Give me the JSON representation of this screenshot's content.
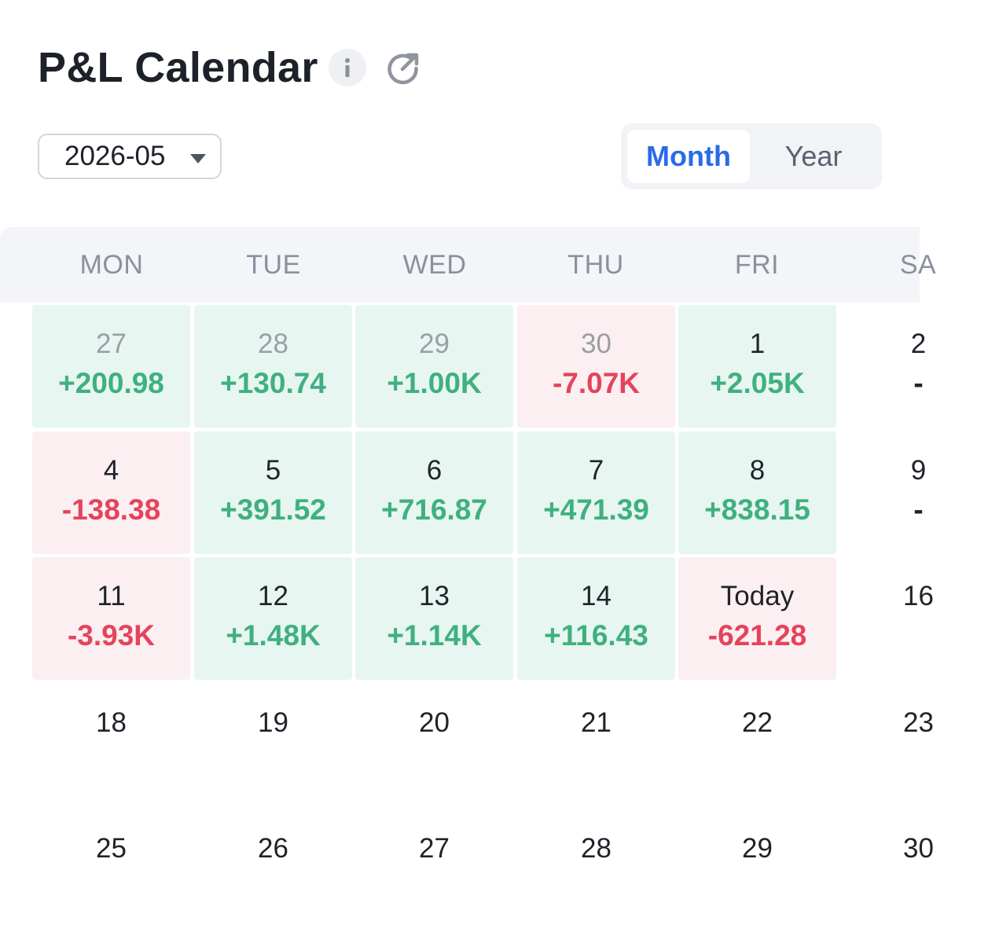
{
  "header": {
    "title": "P&L Calendar",
    "info_icon": "info-icon",
    "share_icon": "external-link-icon"
  },
  "controls": {
    "month_value": "2026-05",
    "view_toggle": {
      "options": [
        "Month",
        "Year"
      ],
      "selected": "Month"
    }
  },
  "weekdays": [
    "MON",
    "TUE",
    "WED",
    "THU",
    "FRI",
    "SA"
  ],
  "calendar": {
    "weeks": [
      [
        {
          "day": "27",
          "value": "+200.98",
          "status": "pos",
          "dim": true
        },
        {
          "day": "28",
          "value": "+130.74",
          "status": "pos",
          "dim": true
        },
        {
          "day": "29",
          "value": "+1.00K",
          "status": "pos",
          "dim": true
        },
        {
          "day": "30",
          "value": "-7.07K",
          "status": "neg",
          "dim": true
        },
        {
          "day": "1",
          "value": "+2.05K",
          "status": "pos",
          "dim": false
        },
        {
          "day": "2",
          "value": "-",
          "status": "none",
          "dim": false
        }
      ],
      [
        {
          "day": "4",
          "value": "-138.38",
          "status": "neg",
          "dim": false
        },
        {
          "day": "5",
          "value": "+391.52",
          "status": "pos",
          "dim": false
        },
        {
          "day": "6",
          "value": "+716.87",
          "status": "pos",
          "dim": false
        },
        {
          "day": "7",
          "value": "+471.39",
          "status": "pos",
          "dim": false
        },
        {
          "day": "8",
          "value": "+838.15",
          "status": "pos",
          "dim": false
        },
        {
          "day": "9",
          "value": "-",
          "status": "none",
          "dim": false
        }
      ],
      [
        {
          "day": "11",
          "value": "-3.93K",
          "status": "neg",
          "dim": false
        },
        {
          "day": "12",
          "value": "+1.48K",
          "status": "pos",
          "dim": false
        },
        {
          "day": "13",
          "value": "+1.14K",
          "status": "pos",
          "dim": false
        },
        {
          "day": "14",
          "value": "+116.43",
          "status": "pos",
          "dim": false
        },
        {
          "day": "Today",
          "value": "-621.28",
          "status": "neg",
          "dim": false
        },
        {
          "day": "16",
          "value": "",
          "status": "none",
          "dim": false
        }
      ],
      [
        {
          "day": "18",
          "value": "",
          "status": "none",
          "dim": false
        },
        {
          "day": "19",
          "value": "",
          "status": "none",
          "dim": false
        },
        {
          "day": "20",
          "value": "",
          "status": "none",
          "dim": false
        },
        {
          "day": "21",
          "value": "",
          "status": "none",
          "dim": false
        },
        {
          "day": "22",
          "value": "",
          "status": "none",
          "dim": false
        },
        {
          "day": "23",
          "value": "",
          "status": "none",
          "dim": false
        }
      ],
      [
        {
          "day": "25",
          "value": "",
          "status": "none",
          "dim": false
        },
        {
          "day": "26",
          "value": "",
          "status": "none",
          "dim": false
        },
        {
          "day": "27",
          "value": "",
          "status": "none",
          "dim": false
        },
        {
          "day": "28",
          "value": "",
          "status": "none",
          "dim": false
        },
        {
          "day": "29",
          "value": "",
          "status": "none",
          "dim": false
        },
        {
          "day": "30",
          "value": "",
          "status": "none",
          "dim": false
        }
      ]
    ]
  },
  "colors": {
    "positive_text": "#3fb07f",
    "positive_bg": "#e7f6f1",
    "negative_text": "#e5435c",
    "negative_bg": "#fbeff1",
    "accent": "#2a6be8"
  }
}
